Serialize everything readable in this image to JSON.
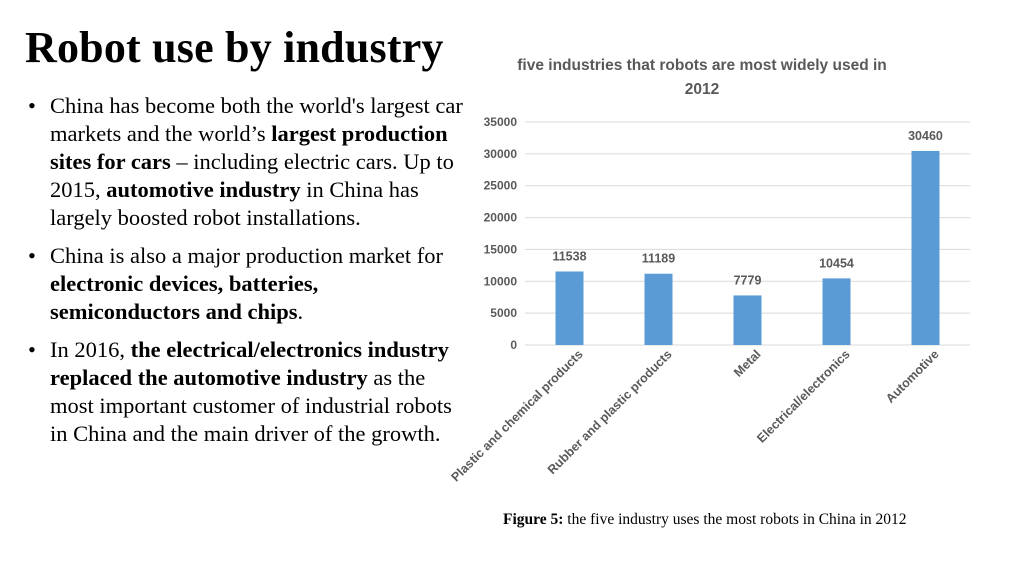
{
  "slide": {
    "title": "Robot use by industry",
    "bullets": [
      {
        "parts": [
          {
            "text": "China has become both the world's largest car markets and the world’s ",
            "bold": false
          },
          {
            "text": "largest production sites for cars",
            "bold": true
          },
          {
            "text": " – including electric cars. Up to 2015, ",
            "bold": false
          },
          {
            "text": "automotive industry",
            "bold": true
          },
          {
            "text": " in China has largely boosted robot installations.",
            "bold": false
          }
        ]
      },
      {
        "parts": [
          {
            "text": "China is also a major production market for ",
            "bold": false
          },
          {
            "text": "electronic devices, batteries, semiconductors and chips",
            "bold": true
          },
          {
            "text": ".",
            "bold": false
          }
        ]
      },
      {
        "parts": [
          {
            "text": "In 2016, ",
            "bold": false
          },
          {
            "text": "the electrical/electronics industry replaced the automotive industry",
            "bold": true
          },
          {
            "text": " as the most important customer of industrial robots in China and the main driver of the growth.",
            "bold": false
          }
        ]
      }
    ],
    "caption": {
      "label": "Figure 5:",
      "text": " the five industry uses the most robots in China in 2012"
    }
  },
  "chart_data": {
    "type": "bar",
    "title_lines": [
      "five industries that robots are most widely used in",
      "2012"
    ],
    "categories": [
      "Plastic and chemical products",
      "Rubber and plastic products",
      "Metal",
      "Electrical/electronics",
      "Automotive"
    ],
    "values": [
      11538,
      11189,
      7779,
      10454,
      30460
    ],
    "yticks": [
      0,
      5000,
      10000,
      15000,
      20000,
      25000,
      30000,
      35000
    ],
    "ylim": [
      0,
      35000
    ],
    "xlabel": "",
    "ylabel": "",
    "grid": true,
    "bar_color": "#5b9bd5",
    "grid_color": "#d9d9d9",
    "text_color": "#595959"
  }
}
